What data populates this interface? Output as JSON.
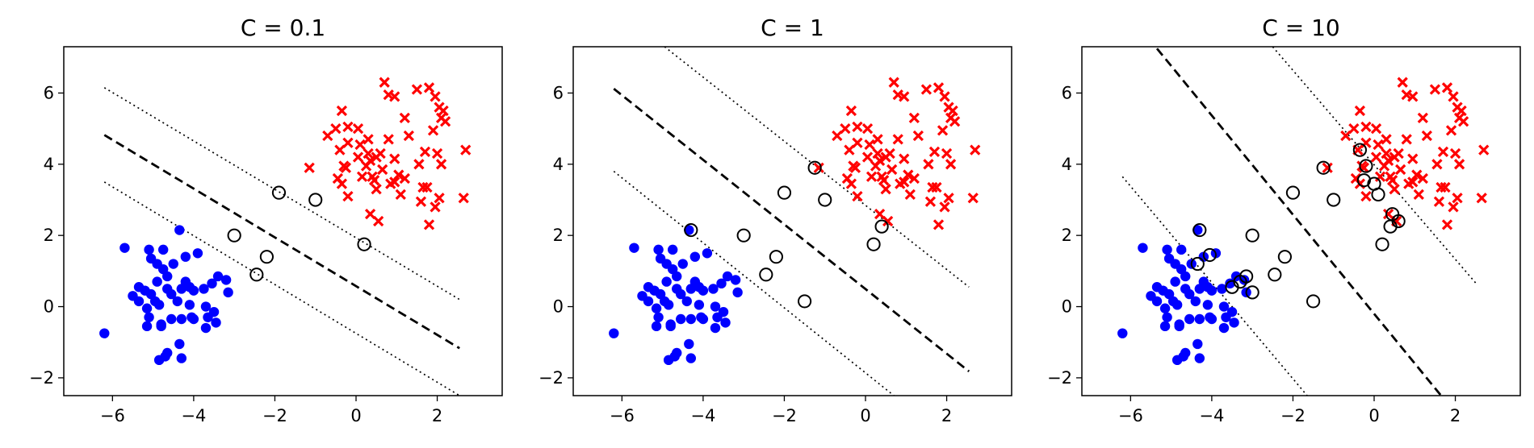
{
  "colors": {
    "class_pos": "#ff0000",
    "class_neg": "#0000ff",
    "frame": "#000000",
    "boundary": "#000000"
  },
  "chart_data": [
    {
      "type": "scatter",
      "title": "C = 0.1",
      "xlim": [
        -7.2,
        3.6
      ],
      "ylim": [
        -2.5,
        7.3
      ],
      "xticks": [
        -6,
        -4,
        -2,
        0,
        2
      ],
      "yticks": [
        -2,
        0,
        2,
        4,
        6
      ],
      "grid": false,
      "decision_boundary": [
        [
          -6.2,
          4.82
        ],
        [
          2.55,
          -1.17
        ]
      ],
      "margins": [
        [
          [
            -6.2,
            6.15
          ],
          [
            2.55,
            0.2
          ]
        ],
        [
          [
            -6.2,
            3.5
          ],
          [
            2.55,
            -2.5
          ]
        ]
      ],
      "support_vectors": [
        [
          -3.0,
          2.0
        ],
        [
          -1.9,
          3.2
        ],
        [
          0.2,
          1.75
        ],
        [
          -2.45,
          0.9
        ],
        [
          -1.0,
          3.0
        ],
        [
          -2.2,
          1.4
        ]
      ]
    },
    {
      "type": "scatter",
      "title": "C = 1",
      "xlim": [
        -7.2,
        3.6
      ],
      "ylim": [
        -2.5,
        7.3
      ],
      "xticks": [
        -6,
        -4,
        -2,
        0,
        2
      ],
      "yticks": [
        -2,
        0,
        2,
        4,
        6
      ],
      "grid": false,
      "decision_boundary": [
        [
          -6.2,
          6.12
        ],
        [
          2.55,
          -1.82
        ]
      ],
      "margins": [
        [
          [
            -6.2,
            3.8
          ],
          [
            0.7,
            -2.5
          ]
        ],
        [
          [
            -4.95,
            7.3
          ],
          [
            2.55,
            0.55
          ]
        ]
      ],
      "support_vectors": [
        [
          -3.0,
          2.0
        ],
        [
          -2.0,
          3.2
        ],
        [
          -1.25,
          3.9
        ],
        [
          0.2,
          1.75
        ],
        [
          0.4,
          2.25
        ],
        [
          -4.3,
          2.15
        ],
        [
          -2.45,
          0.9
        ],
        [
          -2.2,
          1.4
        ],
        [
          -1.5,
          0.15
        ],
        [
          -1.0,
          3.0
        ]
      ]
    },
    {
      "type": "scatter",
      "title": "C = 10",
      "xlim": [
        -7.2,
        3.6
      ],
      "ylim": [
        -2.5,
        7.3
      ],
      "xticks": [
        -6,
        -4,
        -2,
        0,
        2
      ],
      "yticks": [
        -2,
        0,
        2,
        4,
        6
      ],
      "grid": false,
      "decision_boundary": [
        [
          -5.35,
          7.25
        ],
        [
          1.65,
          -2.5
        ]
      ],
      "margins": [
        [
          [
            -6.2,
            3.65
          ],
          [
            -1.65,
            -2.5
          ]
        ],
        [
          [
            -2.5,
            7.3
          ],
          [
            2.55,
            0.6
          ]
        ]
      ],
      "support_vectors": [
        [
          -3.0,
          2.0
        ],
        [
          -2.0,
          3.2
        ],
        [
          -1.25,
          3.9
        ],
        [
          -0.35,
          4.4
        ],
        [
          -0.2,
          3.95
        ],
        [
          -0.25,
          3.55
        ],
        [
          0.0,
          3.45
        ],
        [
          0.1,
          3.15
        ],
        [
          0.45,
          2.6
        ],
        [
          0.6,
          2.4
        ],
        [
          0.4,
          2.25
        ],
        [
          0.2,
          1.75
        ],
        [
          -4.3,
          2.15
        ],
        [
          -4.35,
          1.2
        ],
        [
          -4.05,
          1.45
        ],
        [
          -3.5,
          0.55
        ],
        [
          -3.3,
          0.7
        ],
        [
          -3.15,
          0.85
        ],
        [
          -3.0,
          0.4
        ],
        [
          -2.45,
          0.9
        ],
        [
          -2.2,
          1.4
        ],
        [
          -1.5,
          0.15
        ],
        [
          -1.0,
          3.0
        ]
      ]
    }
  ],
  "points": {
    "class_pos": [
      [
        0.7,
        6.3
      ],
      [
        0.8,
        5.95
      ],
      [
        0.95,
        5.9
      ],
      [
        1.5,
        6.1
      ],
      [
        1.8,
        6.15
      ],
      [
        1.95,
        5.9
      ],
      [
        2.05,
        5.6
      ],
      [
        2.1,
        5.3
      ],
      [
        2.15,
        5.5
      ],
      [
        2.2,
        5.2
      ],
      [
        1.2,
        5.3
      ],
      [
        -0.35,
        5.5
      ],
      [
        -0.5,
        5.0
      ],
      [
        -0.2,
        5.05
      ],
      [
        0.05,
        5.0
      ],
      [
        -0.7,
        4.8
      ],
      [
        -0.2,
        4.6
      ],
      [
        0.3,
        4.7
      ],
      [
        0.8,
        4.7
      ],
      [
        1.3,
        4.8
      ],
      [
        1.9,
        4.95
      ],
      [
        2.0,
        4.3
      ],
      [
        2.1,
        4.0
      ],
      [
        1.7,
        4.35
      ],
      [
        0.1,
        4.55
      ],
      [
        0.3,
        4.3
      ],
      [
        0.05,
        4.2
      ],
      [
        0.25,
        3.95
      ],
      [
        0.35,
        4.1
      ],
      [
        -0.4,
        4.4
      ],
      [
        -0.3,
        3.95
      ],
      [
        0.5,
        4.2
      ],
      [
        0.6,
        4.3
      ],
      [
        0.65,
        3.85
      ],
      [
        0.95,
        4.15
      ],
      [
        1.55,
        4.0
      ],
      [
        2.7,
        4.4
      ],
      [
        -1.15,
        3.9
      ],
      [
        -0.45,
        3.6
      ],
      [
        0.15,
        3.65
      ],
      [
        0.4,
        3.65
      ],
      [
        0.45,
        3.55
      ],
      [
        1.05,
        3.7
      ],
      [
        0.95,
        3.5
      ],
      [
        1.2,
        3.6
      ],
      [
        0.5,
        3.3
      ],
      [
        0.85,
        3.45
      ],
      [
        1.65,
        3.35
      ],
      [
        1.75,
        3.35
      ],
      [
        1.6,
        2.95
      ],
      [
        2.05,
        3.05
      ],
      [
        1.95,
        2.8
      ],
      [
        2.65,
        3.05
      ],
      [
        -0.2,
        3.1
      ],
      [
        1.1,
        3.15
      ],
      [
        -0.35,
        3.45
      ],
      [
        0.35,
        2.6
      ],
      [
        0.55,
        2.4
      ],
      [
        1.8,
        2.3
      ],
      [
        -0.25,
        3.9
      ]
    ],
    "class_neg": [
      [
        -4.35,
        2.15
      ],
      [
        -5.7,
        1.65
      ],
      [
        -5.1,
        1.6
      ],
      [
        -5.05,
        1.35
      ],
      [
        -4.9,
        1.2
      ],
      [
        -4.75,
        1.05
      ],
      [
        -4.5,
        1.2
      ],
      [
        -4.2,
        1.4
      ],
      [
        -3.9,
        1.5
      ],
      [
        -4.65,
        0.85
      ],
      [
        -5.35,
        0.55
      ],
      [
        -5.2,
        0.45
      ],
      [
        -5.5,
        0.3
      ],
      [
        -5.35,
        0.15
      ],
      [
        -5.05,
        0.35
      ],
      [
        -4.9,
        0.7
      ],
      [
        -4.95,
        0.15
      ],
      [
        -4.65,
        0.5
      ],
      [
        -4.55,
        0.35
      ],
      [
        -4.3,
        0.5
      ],
      [
        -4.2,
        0.7
      ],
      [
        -4.0,
        0.45
      ],
      [
        -3.75,
        0.5
      ],
      [
        -4.4,
        0.15
      ],
      [
        -4.85,
        0.05
      ],
      [
        -4.55,
        -0.35
      ],
      [
        -4.3,
        -0.35
      ],
      [
        -4.0,
        -0.35
      ],
      [
        -3.65,
        -0.3
      ],
      [
        -3.45,
        -0.45
      ],
      [
        -3.5,
        -0.15
      ],
      [
        -3.7,
        -0.6
      ],
      [
        -4.8,
        -0.5
      ],
      [
        -4.05,
        -0.3
      ],
      [
        -4.8,
        -0.55
      ],
      [
        -5.1,
        -0.3
      ],
      [
        -5.15,
        -0.55
      ],
      [
        -4.7,
        -1.4
      ],
      [
        -4.65,
        -1.3
      ],
      [
        -4.85,
        -1.5
      ],
      [
        -4.35,
        -1.05
      ],
      [
        -4.3,
        -1.45
      ],
      [
        -6.2,
        -0.75
      ],
      [
        -3.2,
        0.75
      ],
      [
        -3.15,
        0.4
      ],
      [
        -3.55,
        0.65
      ],
      [
        -3.4,
        0.85
      ],
      [
        -4.75,
        1.6
      ],
      [
        -4.1,
        0.55
      ],
      [
        -5.15,
        -0.05
      ],
      [
        -4.1,
        0.05
      ],
      [
        -3.7,
        0.0
      ]
    ]
  }
}
